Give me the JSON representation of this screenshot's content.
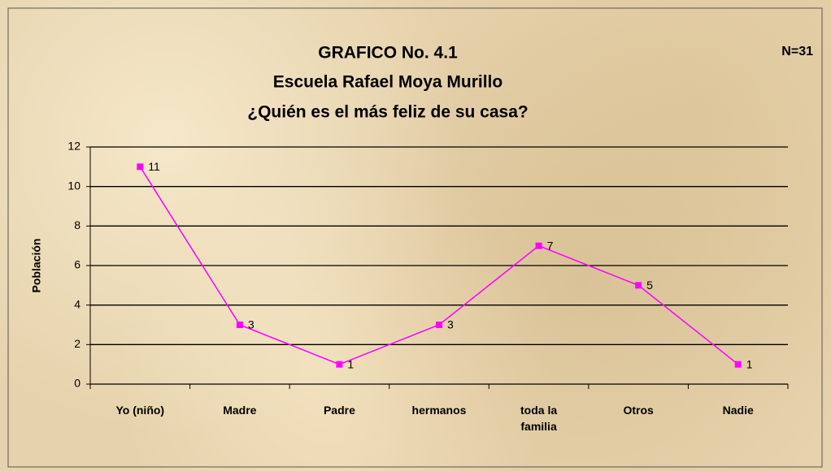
{
  "chart_data": {
    "type": "line",
    "title": "GRAFICO No. 4.1",
    "subtitle": "Escuela Rafael Moya Murillo",
    "question": "¿Quién es el más feliz de su casa?",
    "annotation": "N=31",
    "y_label": "Población",
    "categories": [
      "Yo (niño)",
      "Madre",
      "Padre",
      "hermanos",
      "toda la familia",
      "Otros",
      "Nadie"
    ],
    "series": [
      {
        "name": "Población",
        "color": "#ff00ff",
        "values": [
          11,
          3,
          1,
          3,
          7,
          5,
          1
        ]
      }
    ],
    "ylim": [
      0,
      12
    ],
    "yticks": [
      0,
      2,
      4,
      6,
      8,
      10,
      12
    ],
    "grid": true
  }
}
